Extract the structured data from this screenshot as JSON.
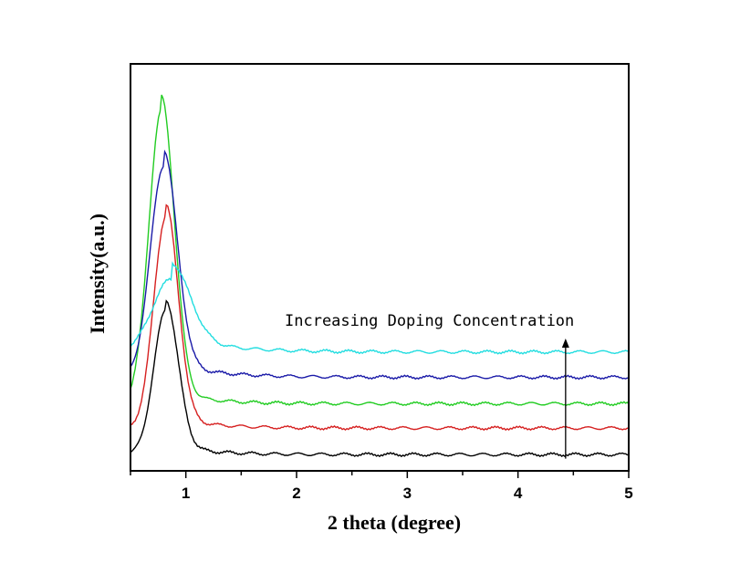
{
  "chart_data": {
    "type": "line",
    "title": "",
    "xlabel": "2 theta (degree)",
    "ylabel": "Intensity(a.u.)",
    "xlim": [
      0.5,
      5
    ],
    "ylim": [
      0,
      1
    ],
    "xticks": [
      1,
      2,
      3,
      4,
      5
    ],
    "yticks_shown": false,
    "grid": false,
    "legend": "none",
    "annotation": {
      "text": "Increasing Doping Concentration",
      "arrow": {
        "x": 4.43,
        "y_start": 0.03,
        "y_end": 0.325
      }
    },
    "series": [
      {
        "color": "#000000",
        "values": {
          "peak_x": 0.82,
          "peak_width": 0.11,
          "peak_height": 0.355,
          "baseline": 0.04,
          "tail": 0.025,
          "tail_decay": 0.35,
          "start": 0.16
        }
      },
      {
        "color": "#d62020",
        "values": {
          "peak_x": 0.82,
          "peak_width": 0.11,
          "peak_height": 0.52,
          "baseline": 0.105,
          "tail": 0.03,
          "tail_decay": 0.35,
          "start": 0.27
        }
      },
      {
        "color": "#22cc22",
        "values": {
          "peak_x": 0.78,
          "peak_width": 0.115,
          "peak_height": 0.72,
          "baseline": 0.165,
          "tail": 0.035,
          "tail_decay": 0.35,
          "start": 0.31
        }
      },
      {
        "color": "#1a1aa8",
        "values": {
          "peak_x": 0.8,
          "peak_width": 0.12,
          "peak_height": 0.52,
          "baseline": 0.23,
          "tail": 0.04,
          "tail_decay": 0.4,
          "start": 0.42
        }
      },
      {
        "color": "#22dde0",
        "values": {
          "peak_x": 0.87,
          "peak_width": 0.17,
          "peak_height": 0.18,
          "baseline": 0.292,
          "tail": 0.04,
          "tail_decay": 0.45,
          "start": 0.47
        }
      }
    ]
  }
}
